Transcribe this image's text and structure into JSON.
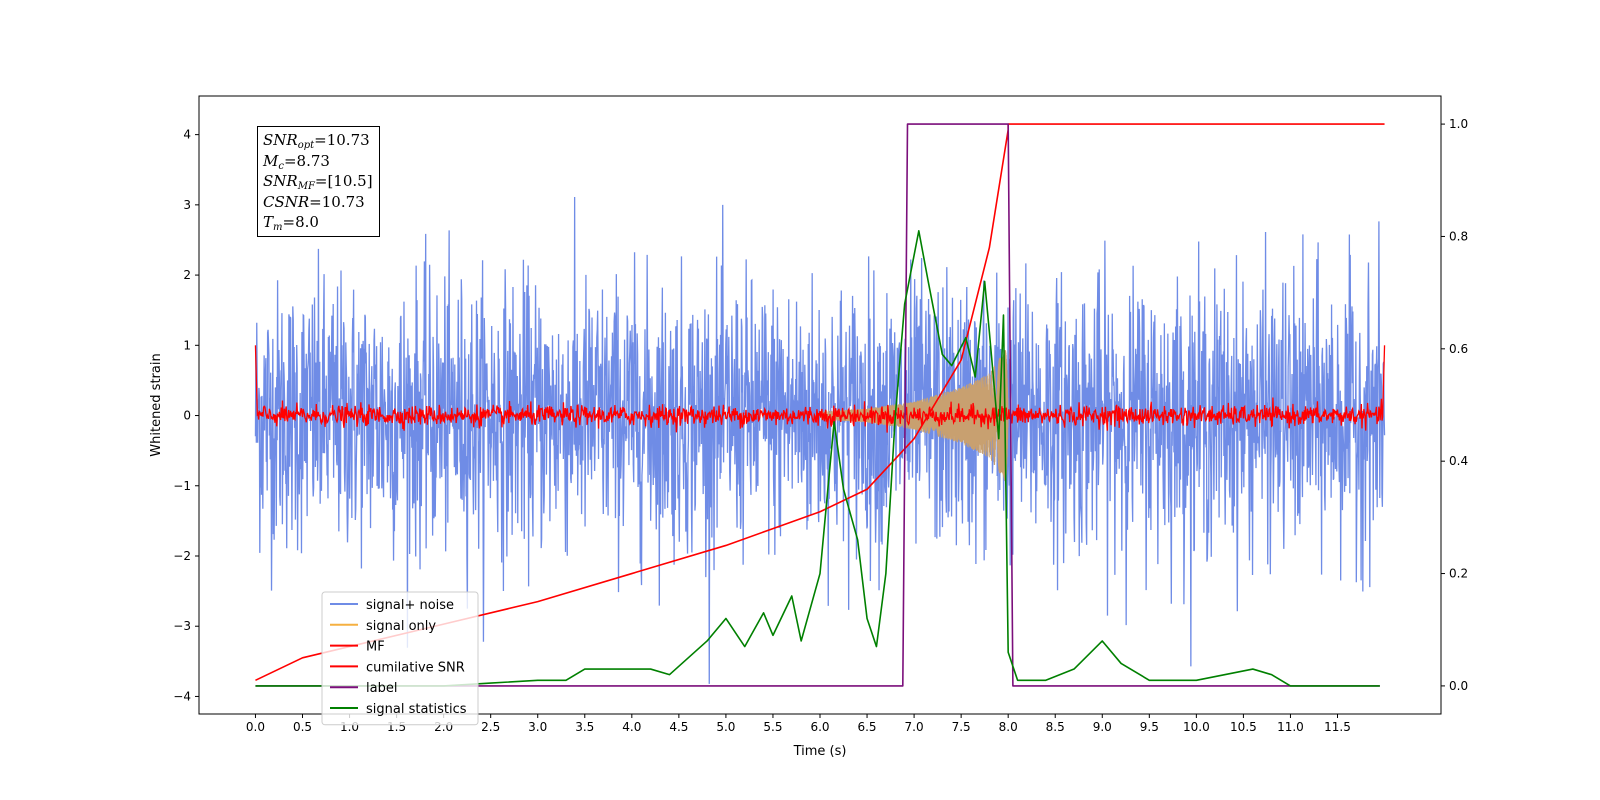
{
  "colors": {
    "signal_noise": "#6f8ce6",
    "signal_only": "#c8a070",
    "signal_only_legend": "#f5b041",
    "mf": "#ff0000",
    "cumulative_snr": "#ff0000",
    "label": "#7b0f7b",
    "signal_statistics": "#008000"
  },
  "annotation": {
    "snr_opt_sym": "SNR",
    "snr_opt_sub": "opt",
    "snr_opt_val": "=10.73",
    "mc_sym": "M",
    "mc_sub": "c",
    "mc_val": "=8.73",
    "snr_mf_sym": "SNR",
    "snr_mf_sub": "MF",
    "snr_mf_val": "=[10.5]",
    "csnr_sym": "CSNR",
    "csnr_val": "=10.73",
    "tm_sym": "T",
    "tm_sub": "m",
    "tm_val": "=8.0"
  },
  "chart_data": {
    "type": "line",
    "xlabel": "Time (s)",
    "ylabel": "Whitened strain",
    "y2label": "",
    "xlim": [
      -0.6,
      12.6
    ],
    "ylim": [
      -4.25,
      4.55
    ],
    "y2lim": [
      -0.05,
      1.05
    ],
    "x_ticks": [
      "0.0",
      "0.5",
      "1.0",
      "1.5",
      "2.0",
      "2.5",
      "3.0",
      "3.5",
      "4.0",
      "4.5",
      "5.0",
      "5.5",
      "6.0",
      "6.5",
      "7.0",
      "7.5",
      "8.0",
      "8.5",
      "9.0",
      "9.5",
      "10.0",
      "10.5",
      "11.0",
      "11.5"
    ],
    "y_ticks": [
      "4",
      "3",
      "2",
      "1",
      "0",
      "−1",
      "−2",
      "−3",
      "−4"
    ],
    "y2_ticks": [
      "1.0",
      "0.8",
      "0.6",
      "0.4",
      "0.2",
      "0.0"
    ],
    "legend_position": "lower-left",
    "legend": [
      "signal+ noise",
      "signal only",
      "MF",
      "cumilative SNR",
      "label",
      "signal statistics"
    ],
    "series": [
      {
        "name": "signal+ noise",
        "axis": "left",
        "description_range": [
          -4.0,
          4.2
        ],
        "x_range": [
          0.0,
          12.0
        ],
        "rms": 0.95
      },
      {
        "name": "signal only",
        "axis": "left",
        "x_range": [
          6.0,
          8.0
        ],
        "envelope": [
          [
            6.0,
            0.05
          ],
          [
            6.5,
            0.1
          ],
          [
            7.0,
            0.2
          ],
          [
            7.5,
            0.4
          ],
          [
            7.8,
            0.6
          ],
          [
            8.0,
            1.0
          ]
        ]
      },
      {
        "name": "MF",
        "axis": "left",
        "x_range": [
          0.0,
          12.0
        ],
        "baseline": 0.0,
        "noise_amp": 0.12,
        "edge_value": 1.0
      },
      {
        "name": "cumilative SNR",
        "axis": "right",
        "points": [
          [
            0.0,
            0.01
          ],
          [
            0.5,
            0.05
          ],
          [
            1.0,
            0.07
          ],
          [
            2.0,
            0.11
          ],
          [
            3.0,
            0.15
          ],
          [
            4.0,
            0.2
          ],
          [
            5.0,
            0.25
          ],
          [
            5.5,
            0.28
          ],
          [
            6.0,
            0.31
          ],
          [
            6.5,
            0.35
          ],
          [
            7.0,
            0.44
          ],
          [
            7.5,
            0.58
          ],
          [
            7.8,
            0.78
          ],
          [
            8.0,
            0.99
          ],
          [
            8.0,
            1.0
          ],
          [
            12.0,
            1.0
          ]
        ]
      },
      {
        "name": "label",
        "axis": "right",
        "points": [
          [
            0.0,
            0.0
          ],
          [
            6.88,
            0.0
          ],
          [
            6.93,
            1.0
          ],
          [
            8.0,
            1.0
          ],
          [
            8.05,
            0.0
          ],
          [
            11.95,
            0.0
          ]
        ]
      },
      {
        "name": "signal statistics",
        "axis": "right",
        "points": [
          [
            0.0,
            0.0
          ],
          [
            1.0,
            0.0
          ],
          [
            2.0,
            0.0
          ],
          [
            2.5,
            0.005
          ],
          [
            3.0,
            0.01
          ],
          [
            3.3,
            0.01
          ],
          [
            3.5,
            0.03
          ],
          [
            3.8,
            0.03
          ],
          [
            4.2,
            0.03
          ],
          [
            4.4,
            0.02
          ],
          [
            4.6,
            0.05
          ],
          [
            4.8,
            0.08
          ],
          [
            5.0,
            0.12
          ],
          [
            5.2,
            0.07
          ],
          [
            5.4,
            0.13
          ],
          [
            5.5,
            0.09
          ],
          [
            5.7,
            0.16
          ],
          [
            5.8,
            0.08
          ],
          [
            6.0,
            0.2
          ],
          [
            6.15,
            0.47
          ],
          [
            6.25,
            0.35
          ],
          [
            6.4,
            0.26
          ],
          [
            6.5,
            0.12
          ],
          [
            6.6,
            0.07
          ],
          [
            6.7,
            0.2
          ],
          [
            6.8,
            0.48
          ],
          [
            6.9,
            0.68
          ],
          [
            7.05,
            0.81
          ],
          [
            7.15,
            0.72
          ],
          [
            7.3,
            0.59
          ],
          [
            7.4,
            0.57
          ],
          [
            7.55,
            0.62
          ],
          [
            7.65,
            0.55
          ],
          [
            7.75,
            0.72
          ],
          [
            7.8,
            0.63
          ],
          [
            7.9,
            0.44
          ],
          [
            7.95,
            0.66
          ],
          [
            8.0,
            0.06
          ],
          [
            8.1,
            0.01
          ],
          [
            8.4,
            0.01
          ],
          [
            8.7,
            0.03
          ],
          [
            9.0,
            0.08
          ],
          [
            9.2,
            0.04
          ],
          [
            9.5,
            0.01
          ],
          [
            10.0,
            0.01
          ],
          [
            10.3,
            0.02
          ],
          [
            10.6,
            0.03
          ],
          [
            10.8,
            0.02
          ],
          [
            11.0,
            0.0
          ],
          [
            11.95,
            0.0
          ]
        ]
      }
    ]
  }
}
